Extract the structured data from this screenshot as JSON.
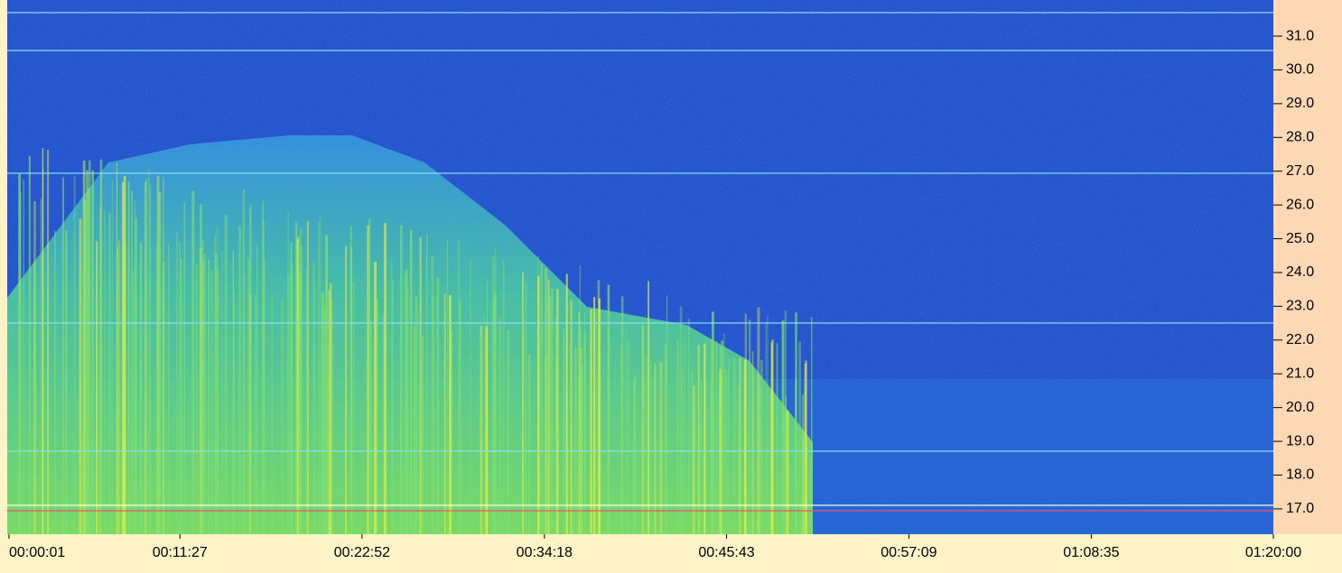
{
  "chart_data": {
    "type": "spectrogram",
    "xlim": [
      1,
      4800
    ],
    "xticks": [
      {
        "value": 1,
        "label": "00:00:01"
      },
      {
        "value": 687,
        "label": "00:11:27"
      },
      {
        "value": 1372,
        "label": "00:22:52"
      },
      {
        "value": 2058,
        "label": "00:34:18"
      },
      {
        "value": 2743,
        "label": "00:45:43"
      },
      {
        "value": 3429,
        "label": "00:57:09"
      },
      {
        "value": 4115,
        "label": "01:08:35"
      },
      {
        "value": 4800,
        "label": "01:20:00"
      }
    ],
    "ylim": [
      16.25,
      32.07
    ],
    "yticks": [
      {
        "value": 17,
        "label": "17.0"
      },
      {
        "value": 18,
        "label": "18.0"
      },
      {
        "value": 19,
        "label": "19.0"
      },
      {
        "value": 20,
        "label": "20.0"
      },
      {
        "value": 21,
        "label": "21.0"
      },
      {
        "value": 22,
        "label": "22.0"
      },
      {
        "value": 23,
        "label": "23.0"
      },
      {
        "value": 24,
        "label": "24.0"
      },
      {
        "value": 25,
        "label": "25.0"
      },
      {
        "value": 26,
        "label": "26.0"
      },
      {
        "value": 27,
        "label": "27.0"
      },
      {
        "value": 28,
        "label": "28.0"
      },
      {
        "value": 29,
        "label": "29.0"
      },
      {
        "value": 30,
        "label": "30.0"
      },
      {
        "value": 31,
        "label": "31.0"
      }
    ]
  }
}
